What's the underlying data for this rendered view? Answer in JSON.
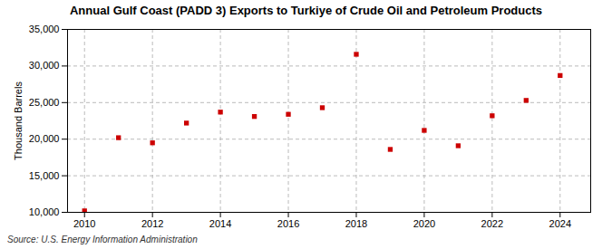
{
  "chart_data": {
    "type": "scatter",
    "title": "Annual Gulf Coast (PADD 3) Exports to Turkiye of Crude Oil and Petroleum Products",
    "ylabel": "Thousand Barrels",
    "source": "Source: U.S. Energy Information Administration",
    "x": [
      2010,
      2011,
      2012,
      2013,
      2014,
      2015,
      2016,
      2017,
      2018,
      2019,
      2020,
      2021,
      2022,
      2023,
      2024
    ],
    "values": [
      10200,
      20200,
      19500,
      22200,
      23700,
      23100,
      23400,
      24300,
      31600,
      18600,
      21200,
      19100,
      23200,
      25300,
      28700
    ],
    "color": "#cc0000",
    "marker": "square",
    "xlim": [
      2009.5,
      2024.9
    ],
    "ylim": [
      10000,
      35000
    ],
    "xticks": [
      2010,
      2012,
      2014,
      2016,
      2018,
      2020,
      2022,
      2024
    ],
    "yticks": [
      {
        "value": 10000,
        "label": "10,000"
      },
      {
        "value": 15000,
        "label": "15,000"
      },
      {
        "value": 20000,
        "label": "20,000"
      },
      {
        "value": 25000,
        "label": "25,000"
      },
      {
        "value": 30000,
        "label": "30,000"
      },
      {
        "value": 35000,
        "label": "35,000"
      }
    ],
    "grid": true
  }
}
